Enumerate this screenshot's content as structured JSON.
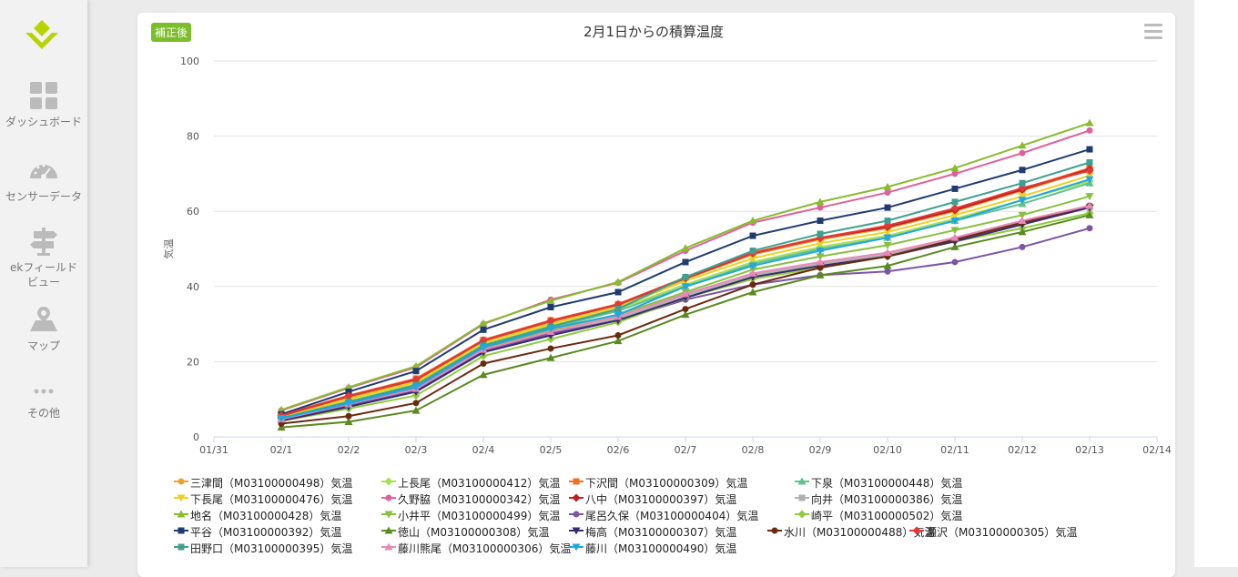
{
  "sidebar": {
    "items": [
      {
        "label": "ダッシュボード",
        "icon": "dashboard-grid-icon"
      },
      {
        "label": "センサーデータ",
        "icon": "gauge-icon"
      },
      {
        "label": "ekフィールド\nビュー",
        "icon": "signpost-icon"
      },
      {
        "label": "マップ",
        "icon": "map-icon"
      },
      {
        "label": "その他",
        "icon": "more-dots-icon"
      }
    ]
  },
  "card": {
    "badge": "補正後",
    "menu_icon": "hamburger-menu-icon"
  },
  "chart_data": {
    "type": "line",
    "title": "2月1日からの積算温度",
    "ylabel": "気温",
    "xlabel": "",
    "ylim": [
      0,
      100
    ],
    "yticks": [
      0,
      20,
      40,
      60,
      80,
      100
    ],
    "xticks": [
      "01/31",
      "02/1",
      "02/2",
      "02/3",
      "02/4",
      "02/5",
      "02/6",
      "02/7",
      "02/8",
      "02/9",
      "02/10",
      "02/11",
      "02/12",
      "02/13",
      "02/14"
    ],
    "x": [
      "02/1",
      "02/2",
      "02/3",
      "02/4",
      "02/5",
      "02/6",
      "02/7",
      "02/8",
      "02/9",
      "02/10",
      "02/11",
      "02/12",
      "02/13"
    ],
    "grid": true,
    "legend_position": "bottom",
    "series": [
      {
        "name": "三津間（M03100000498）気温",
        "color": "#f0a030",
        "marker": "circle",
        "values": [
          5.5,
          10.5,
          15.0,
          25.5,
          30.5,
          35.0,
          42.0,
          48.5,
          52.5,
          55.5,
          60.0,
          65.5,
          71.0
        ]
      },
      {
        "name": "上長尾（M03100000412）気温",
        "color": "#a8e050",
        "marker": "diamond",
        "values": [
          5.0,
          9.5,
          14.0,
          24.5,
          29.5,
          34.0,
          40.5,
          46.5,
          50.5,
          53.5,
          58.0,
          63.0,
          68.0
        ]
      },
      {
        "name": "下沢間（M03100000309）気温",
        "color": "#f07020",
        "marker": "square",
        "values": [
          5.8,
          11.0,
          15.5,
          25.8,
          31.0,
          35.3,
          42.3,
          49.0,
          53.0,
          56.0,
          60.5,
          66.0,
          71.5
        ]
      },
      {
        "name": "下泉（M03100000448）気温",
        "color": "#60c090",
        "marker": "triangle",
        "values": [
          4.8,
          9.0,
          13.5,
          24.0,
          29.0,
          33.5,
          40.0,
          46.0,
          50.0,
          53.0,
          57.5,
          62.0,
          67.5
        ]
      },
      {
        "name": "下長尾（M03100000476）気温",
        "color": "#f0d020",
        "marker": "triangle-down",
        "values": [
          5.3,
          10.0,
          14.5,
          25.0,
          30.0,
          34.5,
          41.5,
          47.5,
          51.5,
          54.5,
          59.0,
          64.0,
          69.5
        ]
      },
      {
        "name": "久野脇（M03100000342）気温",
        "color": "#e0609a",
        "marker": "circle",
        "values": [
          7.0,
          13.0,
          18.5,
          30.0,
          36.5,
          41.0,
          49.5,
          57.0,
          61.0,
          65.0,
          70.0,
          75.5,
          81.5
        ]
      },
      {
        "name": "八中（M03100000397）気温",
        "color": "#c02020",
        "marker": "diamond",
        "values": [
          5.6,
          10.8,
          15.2,
          25.6,
          30.8,
          35.2,
          42.2,
          48.8,
          52.8,
          55.8,
          60.3,
          65.8,
          71.2
        ]
      },
      {
        "name": "向井（M03100000386）気温",
        "color": "#b0b0b0",
        "marker": "square",
        "values": [
          4.5,
          8.5,
          12.5,
          23.0,
          27.5,
          31.5,
          37.5,
          43.0,
          46.0,
          48.5,
          52.5,
          57.0,
          61.0
        ]
      },
      {
        "name": "地名（M03100000428）気温",
        "color": "#88bb30",
        "marker": "triangle",
        "values": [
          7.2,
          13.2,
          18.8,
          30.2,
          36.2,
          41.2,
          50.2,
          57.5,
          62.5,
          66.5,
          71.5,
          77.5,
          83.5
        ]
      },
      {
        "name": "小井平（M03100000499）気温",
        "color": "#88c040",
        "marker": "triangle-down",
        "values": [
          4.6,
          8.8,
          13.0,
          23.5,
          28.5,
          32.5,
          38.5,
          44.5,
          48.0,
          51.0,
          55.0,
          59.0,
          64.0
        ]
      },
      {
        "name": "尾呂久保（M03100000404）気温",
        "color": "#7a55a8",
        "marker": "circle",
        "values": [
          4.4,
          8.3,
          12.2,
          22.8,
          27.5,
          31.0,
          36.5,
          40.5,
          43.0,
          44.0,
          46.5,
          50.5,
          55.5
        ]
      },
      {
        "name": "崎平（M03100000502）気温",
        "color": "#90cc40",
        "marker": "diamond",
        "values": [
          4.2,
          7.5,
          11.0,
          21.5,
          26.0,
          30.5,
          37.0,
          42.0,
          45.0,
          48.0,
          52.0,
          55.5,
          59.5
        ]
      },
      {
        "name": "平谷（M03100000392）気温",
        "color": "#1f3b70",
        "marker": "square",
        "values": [
          6.0,
          12.0,
          17.5,
          28.5,
          34.5,
          38.5,
          46.5,
          53.5,
          57.5,
          61.0,
          66.0,
          71.0,
          76.5
        ]
      },
      {
        "name": "徳山（M03100000308）気温",
        "color": "#5a8a20",
        "marker": "triangle",
        "values": [
          2.5,
          4.0,
          7.0,
          16.5,
          21.0,
          25.5,
          32.5,
          38.5,
          43.0,
          45.5,
          50.5,
          54.5,
          59.0
        ]
      },
      {
        "name": "梅高（M03100000307）気温",
        "color": "#3a2a70",
        "marker": "triangle-down",
        "values": [
          4.3,
          8.0,
          12.0,
          22.5,
          27.0,
          31.0,
          37.0,
          42.5,
          45.5,
          48.0,
          52.0,
          56.5,
          61.0
        ]
      },
      {
        "name": "水川（M03100000488）気温",
        "color": "#6a2a10",
        "marker": "circle",
        "values": [
          3.5,
          5.5,
          9.0,
          19.5,
          23.5,
          27.0,
          34.0,
          40.5,
          45.0,
          48.0,
          52.5,
          57.0,
          61.5
        ]
      },
      {
        "name": "瀬沢（M03100000305）気温",
        "color": "#e03a3a",
        "marker": "diamond",
        "values": [
          5.7,
          10.9,
          15.3,
          25.7,
          30.9,
          35.3,
          42.4,
          48.9,
          52.9,
          56.2,
          60.8,
          66.2,
          70.8
        ]
      },
      {
        "name": "田野口（M03100000395）気温",
        "color": "#40a090",
        "marker": "square",
        "values": [
          5.0,
          9.3,
          13.8,
          24.3,
          29.3,
          34.0,
          42.5,
          49.5,
          54.0,
          57.5,
          62.5,
          67.5,
          73.0
        ]
      },
      {
        "name": "藤川熊尾（M03100000306）気温",
        "color": "#e888b8",
        "marker": "triangle",
        "values": [
          4.7,
          8.7,
          12.8,
          23.2,
          28.0,
          32.0,
          38.0,
          43.5,
          46.5,
          49.0,
          53.0,
          57.5,
          61.5
        ]
      },
      {
        "name": "藤川（M03100000490）気温",
        "color": "#20a8e0",
        "marker": "triangle-down",
        "values": [
          4.9,
          8.9,
          13.2,
          23.8,
          28.8,
          32.5,
          40.0,
          45.5,
          49.5,
          53.0,
          57.5,
          63.0,
          68.5
        ]
      }
    ]
  }
}
